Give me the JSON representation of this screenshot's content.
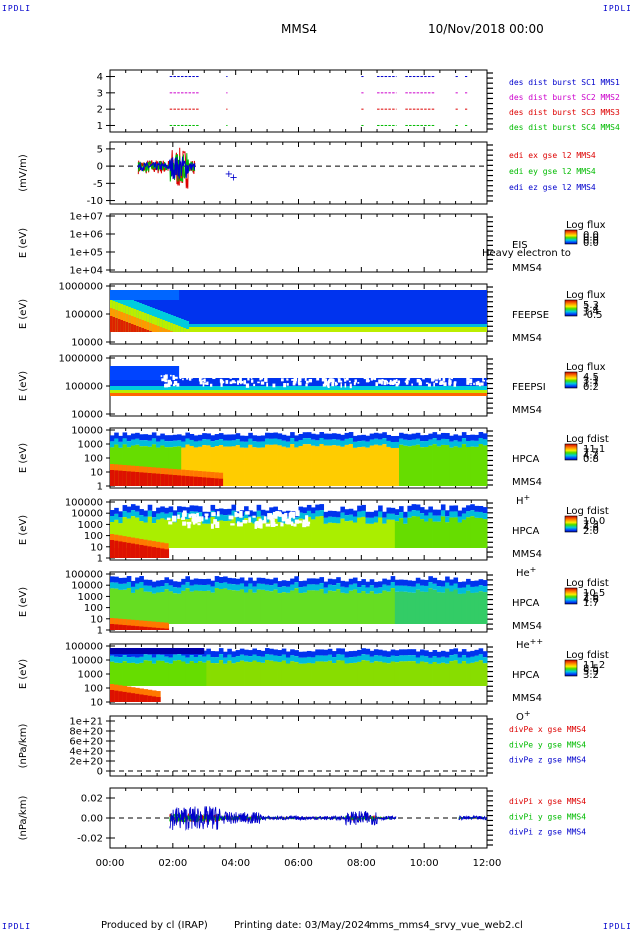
{
  "header": {
    "corner_label": "IPDLI",
    "spacecraft": "MMS4",
    "date": "10/Nov/2018 00:00"
  },
  "footer": {
    "produced_by": "Produced by cl (IRAP)",
    "printing_date": "Printing date: 03/May/2024",
    "script": "mms_mms4_srvy_vue_web2.cl"
  },
  "colors": {
    "red": "#dd0000",
    "green": "#00bb00",
    "blue": "#0000cc",
    "magenta": "#cc00cc"
  },
  "chart_data": [
    {
      "type": "scatter",
      "id": "burst",
      "ylabel": "",
      "yticks": [
        "1",
        "2",
        "3",
        "4"
      ],
      "ylim": [
        0.6,
        4.4
      ],
      "series": [
        {
          "name": "des dist burst SC1 MMS1",
          "color": "#0000cc",
          "y": 4
        },
        {
          "name": "des dist burst SC2 MMS2",
          "color": "#cc00cc",
          "y": 3
        },
        {
          "name": "des dist burst SC3 MMS3",
          "color": "#dd0000",
          "y": 2
        },
        {
          "name": "des dist burst SC4 MMS4",
          "color": "#00bb00",
          "y": 1
        }
      ]
    },
    {
      "type": "line",
      "id": "edi",
      "ylabel": "(mV/m)",
      "yticks": [
        "-10",
        "-5",
        "0",
        "5"
      ],
      "ylim": [
        -11,
        7
      ],
      "series": [
        {
          "name": "edi ex gse l2 MMS4",
          "color": "#dd0000"
        },
        {
          "name": "edi ey gse l2 MMS4",
          "color": "#00bb00"
        },
        {
          "name": "edi ez gse l2 MMS4",
          "color": "#0000cc"
        }
      ]
    },
    {
      "type": "heatmap",
      "id": "eis",
      "ylabel": "E (eV)",
      "yticks": [
        "1e+04",
        "1e+05",
        "1e+06",
        "1e+07"
      ],
      "label_main": "EIS",
      "label_sub": "MMS4",
      "label_extra": "Heavy electron to",
      "cbar_title": "Log flux",
      "cbar_ticks": [
        "0.0",
        "0.0",
        "0.0",
        "0.0"
      ]
    },
    {
      "type": "heatmap",
      "id": "feepse",
      "ylabel": "E (eV)",
      "yticks": [
        "10000",
        "100000",
        "1000000"
      ],
      "label_main": "FEEPSE",
      "label_sub": "MMS4",
      "cbar_title": "Log flux",
      "cbar_ticks": [
        "5.3",
        "3.4",
        "1.4",
        "-0.5"
      ]
    },
    {
      "type": "heatmap",
      "id": "feepsi",
      "ylabel": "E (eV)",
      "yticks": [
        "10000",
        "100000",
        "1000000"
      ],
      "label_main": "FEEPSI",
      "label_sub": "MMS4",
      "cbar_title": "Log flux",
      "cbar_ticks": [
        "4.5",
        "3.1",
        "1.7",
        "0.2"
      ]
    },
    {
      "type": "heatmap",
      "id": "hpca_h",
      "ylabel": "E (eV)",
      "yticks": [
        "1",
        "10",
        "100",
        "1000",
        "10000"
      ],
      "label_main": "HPCA",
      "label_sub": "MMS4",
      "ion": "H",
      "ion_charge": "+",
      "cbar_title": "Log fdist",
      "cbar_ticks": [
        "11.1",
        "7.7",
        "4.2",
        "0.8"
      ]
    },
    {
      "type": "heatmap",
      "id": "hpca_he1",
      "ylabel": "E (eV)",
      "yticks": [
        "1",
        "10",
        "100",
        "1000",
        "10000",
        "100000"
      ],
      "label_main": "HPCA",
      "label_sub": "MMS4",
      "ion": "He",
      "ion_charge": "+",
      "cbar_title": "Log fdist",
      "cbar_ticks": [
        "10.0",
        "7.3",
        "4.6",
        "2.0"
      ]
    },
    {
      "type": "heatmap",
      "id": "hpca_he2",
      "ylabel": "E (eV)",
      "yticks": [
        "1",
        "10",
        "100",
        "1000",
        "10000",
        "100000"
      ],
      "label_main": "HPCA",
      "label_sub": "MMS4",
      "ion": "He",
      "ion_charge": "++",
      "cbar_title": "Log fdist",
      "cbar_ticks": [
        "10.5",
        "7.6",
        "4.6",
        "1.7"
      ]
    },
    {
      "type": "heatmap",
      "id": "hpca_o",
      "ylabel": "E (eV)",
      "yticks": [
        "10",
        "100",
        "1000",
        "10000",
        "100000"
      ],
      "label_main": "HPCA",
      "label_sub": "MMS4",
      "ion": "O",
      "ion_charge": "+",
      "cbar_title": "Log fdist",
      "cbar_ticks": [
        "11.2",
        "8.5",
        "5.9",
        "3.2"
      ]
    },
    {
      "type": "line",
      "id": "divpe",
      "ylabel": "(nPa/km)",
      "yticks": [
        "0",
        "2e+20",
        "4e+20",
        "6e+20",
        "8e+20",
        "1e+21"
      ],
      "ylim": [
        -1e+20,
        1.1e+21
      ],
      "series": [
        {
          "name": "divPe x gse MMS4",
          "color": "#dd0000"
        },
        {
          "name": "divPe y gse MMS4",
          "color": "#00bb00"
        },
        {
          "name": "divPe z gse MMS4",
          "color": "#0000cc"
        }
      ]
    },
    {
      "type": "line",
      "id": "divpi",
      "ylabel": "(nPa/km)",
      "yticks": [
        "-0.02",
        "0.00",
        "0.02"
      ],
      "ylim": [
        -0.03,
        0.03
      ],
      "series": [
        {
          "name": "divPi x gse MMS4",
          "color": "#dd0000"
        },
        {
          "name": "divPi y gse MMS4",
          "color": "#00bb00"
        },
        {
          "name": "divPi z gse MMS4",
          "color": "#0000cc"
        }
      ]
    }
  ],
  "xaxis": {
    "ticks": [
      "00:00",
      "02:00",
      "04:00",
      "06:00",
      "08:00",
      "10:00",
      "12:00"
    ],
    "xlim_hours": [
      0,
      12
    ]
  }
}
